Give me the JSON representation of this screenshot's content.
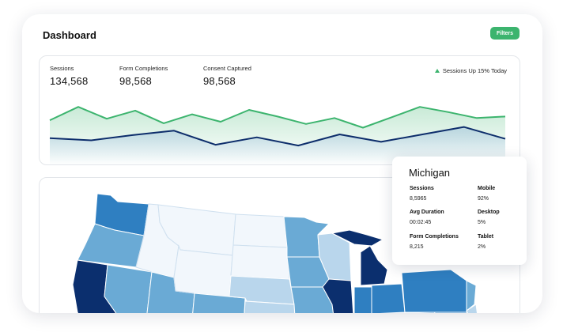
{
  "header": {
    "title": "Dashboard",
    "filters_label": "Filters"
  },
  "metrics": [
    {
      "label": "Sessions",
      "value": "134,568"
    },
    {
      "label": "Form Completions",
      "value": "98,568"
    },
    {
      "label": "Consent Captured",
      "value": "98,568"
    }
  ],
  "trend": {
    "text": "Sessions Up 15% Today",
    "icon": "triangle-up-icon"
  },
  "colors": {
    "accent_green": "#3cb46e",
    "navy": "#0d2d6b",
    "map_darkest": "#0b2f6e",
    "map_dark": "#2f7fc1",
    "map_mid": "#6aaad5",
    "map_light": "#b9d6ec",
    "map_lightest": "#f2f7fc"
  },
  "chart_data": {
    "type": "line",
    "series": [
      {
        "values": [
          52,
          70,
          54,
          65,
          48,
          60,
          50,
          66,
          57,
          47,
          55,
          42,
          56,
          70,
          63,
          55,
          57
        ]
      },
      {
        "values": [
          28,
          25,
          32,
          38,
          19,
          29,
          18,
          33,
          23,
          33,
          43,
          27
        ]
      }
    ],
    "ylim": [
      0,
      100
    ]
  },
  "popup": {
    "state": "Michigan",
    "stats": [
      {
        "label": "Sessions",
        "value": "8,5965"
      },
      {
        "label": "Mobile",
        "value": "92%"
      },
      {
        "label": "Avg Duration",
        "value": "00:02:45"
      },
      {
        "label": "Desktop",
        "value": "5%"
      },
      {
        "label": "Form Completions",
        "value": "8,215"
      },
      {
        "label": "Tablet",
        "value": "2%"
      }
    ]
  }
}
